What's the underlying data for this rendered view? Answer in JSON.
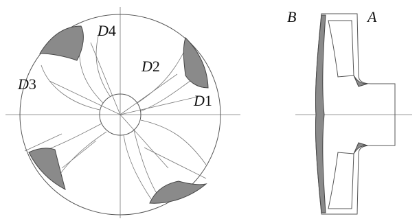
{
  "dimensions": [
    {
      "symbol": "D",
      "number": "4"
    },
    {
      "symbol": "D",
      "number": "2"
    },
    {
      "symbol": "D",
      "number": "3"
    },
    {
      "symbol": "D",
      "number": "1"
    }
  ],
  "side_labels": {
    "left": "B",
    "right": "A"
  }
}
